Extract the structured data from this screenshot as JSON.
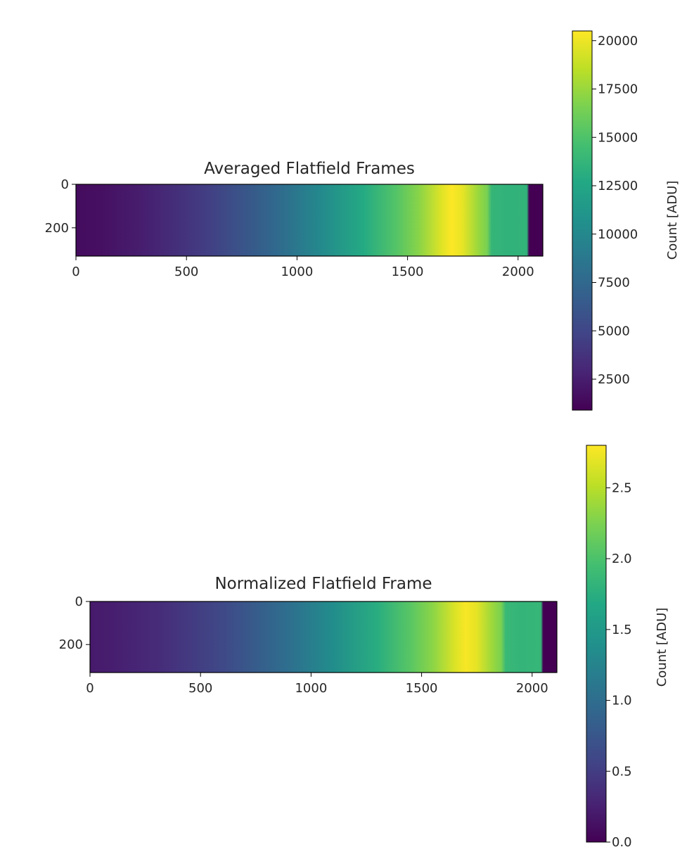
{
  "chart_data": [
    {
      "type": "heatmap",
      "title": "Averaged Flatfield Frames",
      "colormap": "viridis",
      "x_ticks": [
        "0",
        "500",
        "1000",
        "1500",
        "2000"
      ],
      "y_ticks": [
        "0",
        "200"
      ],
      "xlim": [
        0,
        2112
      ],
      "ylim": [
        330,
        0
      ],
      "colorbar": {
        "label": "Count [ADU]",
        "range": [
          900,
          20500
        ],
        "ticks": [
          "2500",
          "5000",
          "7500",
          "10000",
          "12500",
          "15000",
          "17500",
          "20000"
        ]
      },
      "column_profile": {
        "x": [
          0,
          100,
          300,
          600,
          900,
          1100,
          1300,
          1450,
          1550,
          1650,
          1700,
          1750,
          1820,
          1860,
          1880,
          1950,
          2040,
          2050,
          2112
        ],
        "values": [
          1500,
          1700,
          2500,
          4500,
          7500,
          10000,
          12800,
          15200,
          17000,
          19500,
          20500,
          19800,
          17500,
          16500,
          13800,
          13500,
          13600,
          900,
          900
        ]
      }
    },
    {
      "type": "heatmap",
      "title": "Normalized Flatfield Frame",
      "colormap": "viridis",
      "x_ticks": [
        "0",
        "500",
        "1000",
        "1500",
        "2000"
      ],
      "y_ticks": [
        "0",
        "200"
      ],
      "xlim": [
        0,
        2112
      ],
      "ylim": [
        330,
        0
      ],
      "colorbar": {
        "label": "Count [ADU]",
        "range": [
          0,
          2.8
        ],
        "ticks": [
          "0.0",
          "0.5",
          "1.0",
          "1.5",
          "2.0",
          "2.5"
        ]
      },
      "column_profile": {
        "x": [
          0,
          100,
          300,
          600,
          900,
          1100,
          1300,
          1450,
          1550,
          1650,
          1700,
          1750,
          1820,
          1860,
          1880,
          1950,
          2040,
          2050,
          2112
        ],
        "values": [
          0.2,
          0.23,
          0.34,
          0.61,
          1.02,
          1.36,
          1.74,
          2.07,
          2.31,
          2.65,
          2.78,
          2.69,
          2.38,
          2.24,
          1.87,
          1.83,
          1.85,
          0.0,
          0.0
        ]
      }
    }
  ]
}
